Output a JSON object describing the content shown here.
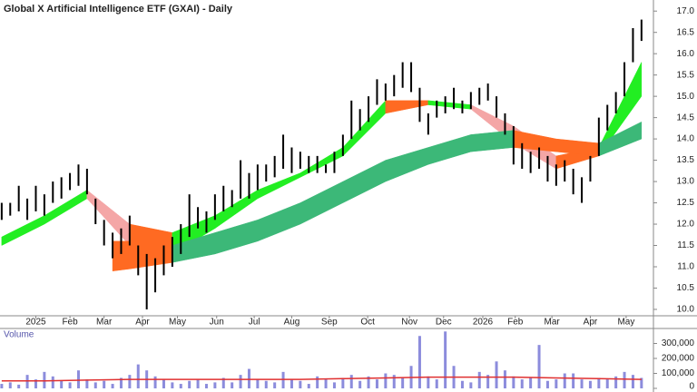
{
  "chart_data": [
    {
      "type": "ohlc",
      "title": "Global X Artificial Intelligence ETF (GXAI) - Daily",
      "color": "#000000",
      "xlim": [
        -0.2,
        76.4
      ],
      "xticks": [
        {
          "value": 4,
          "label": "2025"
        },
        {
          "value": 8,
          "label": "Feb"
        },
        {
          "value": 12,
          "label": "Mar"
        },
        {
          "value": 16.5,
          "label": "Apr"
        },
        {
          "value": 20.6,
          "label": "May"
        },
        {
          "value": 25.2,
          "label": "Jun"
        },
        {
          "value": 29.6,
          "label": "Jul"
        },
        {
          "value": 34,
          "label": "Aug"
        },
        {
          "value": 38.4,
          "label": "Sep"
        },
        {
          "value": 42.9,
          "label": "Oct"
        },
        {
          "value": 47.8,
          "label": "Nov"
        },
        {
          "value": 51.8,
          "label": "Dec"
        },
        {
          "value": 56.4,
          "label": "2026"
        },
        {
          "value": 60.2,
          "label": "Feb"
        },
        {
          "value": 64.5,
          "label": "Mar"
        },
        {
          "value": 69,
          "label": "Apr"
        },
        {
          "value": 73.2,
          "label": "May"
        }
      ],
      "ylim": [
        9.85,
        17.26
      ],
      "yticks": [
        {
          "value": 10,
          "label": "10.0"
        },
        10.5,
        {
          "value": 11,
          "label": "11.0"
        },
        11.5,
        {
          "value": 12,
          "label": "12.0"
        },
        12.5,
        {
          "value": 13,
          "label": "13.0"
        },
        13.5,
        {
          "value": 14,
          "label": "14.0"
        },
        14.5,
        {
          "value": 15,
          "label": "15.0"
        },
        15.5,
        {
          "value": 16,
          "label": "16.0"
        },
        16.5,
        {
          "value": 17,
          "label": "17.0"
        }
      ],
      "high": [
        12.5,
        12.5,
        12.9,
        12.6,
        12.9,
        12.7,
        13.0,
        13.1,
        13.2,
        13.4,
        13.3,
        12.6,
        12.1,
        11.8,
        11.9,
        12.2,
        11.5,
        11.3,
        11.2,
        11.5,
        11.7,
        12.0,
        12.7,
        12.4,
        12.3,
        12.7,
        12.9,
        12.8,
        13.5,
        13.2,
        13.4,
        13.4,
        13.6,
        14.1,
        13.8,
        13.7,
        13.6,
        13.6,
        13.4,
        13.7,
        14.1,
        14.9,
        14.7,
        15.0,
        15.4,
        15.3,
        15.5,
        15.8,
        15.8,
        15.2,
        14.6,
        14.9,
        15.0,
        15.2,
        14.9,
        15.1,
        15.2,
        15.3,
        15.0,
        14.6,
        14.3,
        13.9,
        13.7,
        13.8,
        13.6,
        13.4,
        13.5,
        13.3,
        13.1,
        13.6,
        14.5,
        14.8,
        15.1,
        15.8,
        16.6,
        16.8
      ],
      "low": [
        12.1,
        12.2,
        12.3,
        12.1,
        12.3,
        12.2,
        12.5,
        12.6,
        12.8,
        12.9,
        12.7,
        12.0,
        11.5,
        11.2,
        11.3,
        11.5,
        10.8,
        10.0,
        10.4,
        10.8,
        11.0,
        11.3,
        11.7,
        11.9,
        11.8,
        12.1,
        12.3,
        12.4,
        12.6,
        12.6,
        12.8,
        13.0,
        13.1,
        13.3,
        13.2,
        13.3,
        13.2,
        13.2,
        13.2,
        13.2,
        13.6,
        14.0,
        14.2,
        14.4,
        14.8,
        14.9,
        15.0,
        15.2,
        15.1,
        14.4,
        14.1,
        14.5,
        14.6,
        14.7,
        14.6,
        14.7,
        14.8,
        14.9,
        14.5,
        14.1,
        13.4,
        13.3,
        13.2,
        13.3,
        13.0,
        12.9,
        13.0,
        12.7,
        12.5,
        13.0,
        13.6,
        14.2,
        14.6,
        15.0,
        15.8,
        16.3
      ],
      "ribbons": [
        {
          "x": [
            0,
            5,
            10,
            15,
            20,
            25,
            30,
            35,
            40,
            45,
            50,
            55,
            60,
            65,
            70,
            75
          ],
          "upper": [
            11.7,
            12.2,
            12.8,
            12.0,
            11.8,
            12.2,
            12.8,
            13.2,
            13.8,
            14.9,
            14.9,
            14.8,
            14.3,
            13.6,
            13.8,
            15.8
          ],
          "lower": [
            11.5,
            12.0,
            12.6,
            11.5,
            11.3,
            11.9,
            12.6,
            13.1,
            13.6,
            14.6,
            14.8,
            14.7,
            13.9,
            13.3,
            13.6,
            15.0
          ],
          "colors": [
            "#22ee22",
            "#22ee22",
            "#f4a6a6",
            "#ff6a22",
            "#22ee22",
            "#22ee22",
            "#22ee22",
            "#22ee22",
            "#22ee22",
            "#ff6a22",
            "#22ee22",
            "#f4a6a6",
            "#f4a6a6",
            "#ff6a22",
            "#22ee22"
          ]
        },
        {
          "x": [
            13,
            15,
            20,
            25,
            30,
            35,
            40,
            45,
            50,
            55,
            60,
            65,
            70,
            75
          ],
          "upper": [
            11.6,
            11.6,
            11.5,
            11.8,
            12.1,
            12.5,
            13.0,
            13.5,
            13.8,
            14.1,
            14.2,
            14.0,
            13.9,
            14.4
          ],
          "lower": [
            10.9,
            10.95,
            11.1,
            11.3,
            11.6,
            12.0,
            12.5,
            13.0,
            13.4,
            13.7,
            13.8,
            13.7,
            13.6,
            14.0
          ],
          "colors": [
            "#ff6a22",
            "#ff6a22",
            "#3cb878",
            "#3cb878",
            "#3cb878",
            "#3cb878",
            "#3cb878",
            "#3cb878",
            "#3cb878",
            "#3cb878",
            "#ff6a22",
            "#ff6a22",
            "#3cb878"
          ]
        }
      ]
    },
    {
      "type": "bar",
      "title": "Volume",
      "color": "#8c8cdc",
      "xlim": [
        -0.2,
        76.4
      ],
      "ylim": [
        0,
        400000
      ],
      "yticks": [
        0,
        {
          "value": 100000,
          "label": "100,000"
        },
        {
          "value": 200000,
          "label": "200,000"
        },
        {
          "value": 300000,
          "label": "300,000"
        }
      ],
      "values": [
        30000,
        40000,
        25000,
        90000,
        60000,
        110000,
        80000,
        50000,
        40000,
        120000,
        60000,
        40000,
        50000,
        30000,
        70000,
        90000,
        160000,
        120000,
        80000,
        60000,
        40000,
        30000,
        50000,
        60000,
        30000,
        40000,
        70000,
        40000,
        90000,
        130000,
        60000,
        50000,
        40000,
        110000,
        60000,
        50000,
        30000,
        80000,
        60000,
        40000,
        70000,
        90000,
        50000,
        80000,
        60000,
        100000,
        90000,
        70000,
        150000,
        350000,
        80000,
        60000,
        380000,
        150000,
        50000,
        40000,
        110000,
        90000,
        180000,
        120000,
        80000,
        60000,
        70000,
        290000,
        50000,
        60000,
        100000,
        100000,
        60000,
        50000,
        70000,
        60000,
        80000,
        110000,
        90000,
        70000
      ],
      "average": {
        "color": "#e03030",
        "x": [
          0,
          5,
          10,
          15,
          20,
          25,
          30,
          35,
          40,
          45,
          50,
          55,
          60,
          65,
          70,
          75
        ],
        "values": [
          50000,
          50000,
          55000,
          60000,
          60000,
          60000,
          60000,
          60000,
          65000,
          70000,
          75000,
          75000,
          75000,
          70000,
          65000,
          60000
        ]
      }
    }
  ]
}
